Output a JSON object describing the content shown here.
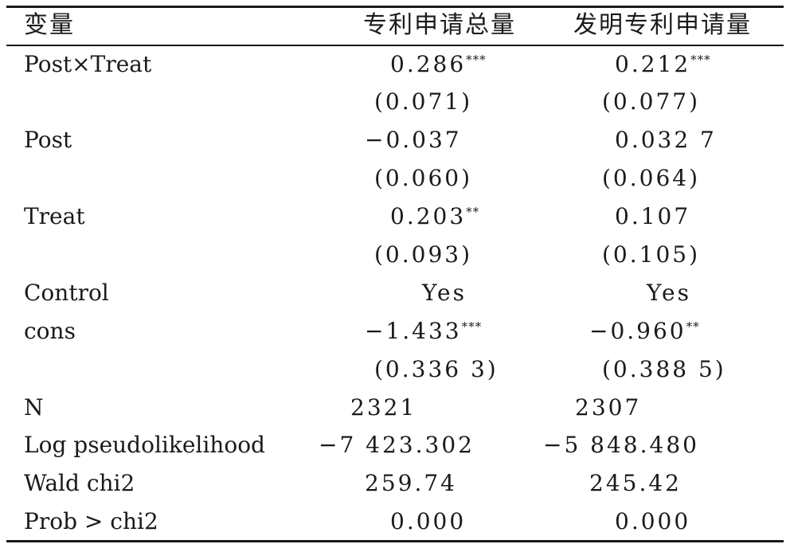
{
  "table": {
    "headers": [
      "变量",
      "专利申请总量",
      "发明专利申请量"
    ],
    "rows": [
      {
        "var": "Post×Treat",
        "c1": "0.286",
        "c1_sig": "***",
        "c2": "0.212",
        "c2_sig": "***"
      },
      {
        "var": "",
        "c1": "(0.071)",
        "c1_sig": "",
        "c2": "(0.077)",
        "c2_sig": ""
      },
      {
        "var": "Post",
        "c1": "−0.037",
        "c1_sig": "",
        "c2": "0.032 7",
        "c2_sig": ""
      },
      {
        "var": "",
        "c1": "(0.060)",
        "c1_sig": "",
        "c2": "(0.064)",
        "c2_sig": ""
      },
      {
        "var": "Treat",
        "c1": "0.203",
        "c1_sig": "**",
        "c2": "0.107",
        "c2_sig": ""
      },
      {
        "var": "",
        "c1": "(0.093)",
        "c1_sig": "",
        "c2": "(0.105)",
        "c2_sig": ""
      },
      {
        "var": "Control",
        "c1": "Yes",
        "c1_sig": "",
        "c2": "Yes",
        "c2_sig": ""
      },
      {
        "var": "cons",
        "c1": "−1.433",
        "c1_sig": "***",
        "c2": "−0.960",
        "c2_sig": "**"
      },
      {
        "var": "",
        "c1": "(0.336 3)",
        "c1_sig": "",
        "c2": "(0.388 5)",
        "c2_sig": ""
      },
      {
        "var": "N",
        "c1": "2321",
        "c1_sig": "",
        "c2": "2307",
        "c2_sig": ""
      },
      {
        "var": "Log pseudolikelihood",
        "c1": "−7 423.302",
        "c1_sig": "",
        "c2": "−5 848.480",
        "c2_sig": ""
      },
      {
        "var": "Wald chi2",
        "c1": "259.74",
        "c1_sig": "",
        "c2": "245.42",
        "c2_sig": ""
      },
      {
        "var": "Prob > chi2",
        "c1": "0.000",
        "c1_sig": "",
        "c2": "0.000",
        "c2_sig": ""
      }
    ]
  }
}
